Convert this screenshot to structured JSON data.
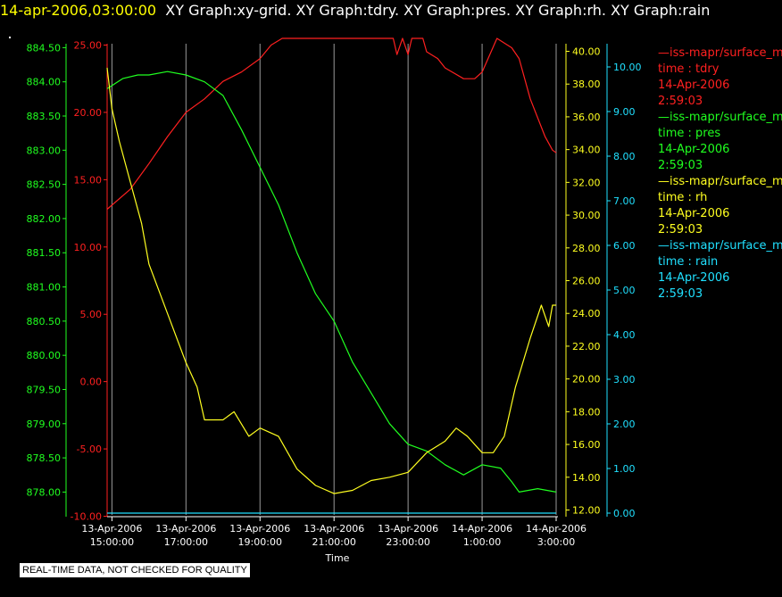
{
  "header": {
    "timestamp": "14-apr-2006,03:00:00",
    "title_rest": "XY Graph:xy-grid.  XY Graph:tdry.  XY Graph:pres.  XY Graph:rh.  XY Graph:rain"
  },
  "quality_note": "REAL-TIME DATA, NOT CHECKED FOR QUALITY",
  "legend": [
    {
      "name": "—iss-mapr/surface_m",
      "field": "time : tdry",
      "date": "14-Apr-2006",
      "time": "2:59:03",
      "color": "#ff2020"
    },
    {
      "name": "—iss-mapr/surface_m",
      "field": "time : pres",
      "date": "14-Apr-2006",
      "time": "2:59:03",
      "color": "#20ff20"
    },
    {
      "name": "—iss-mapr/surface_m",
      "field": "time : rh",
      "date": "14-Apr-2006",
      "time": "2:59:03",
      "color": "#ffff20"
    },
    {
      "name": "—iss-mapr/surface_m",
      "field": "time : rain",
      "date": "14-Apr-2006",
      "time": "2:59:03",
      "color": "#20e0ff"
    }
  ],
  "chart_data": {
    "type": "line",
    "xlabel": "Time",
    "x_range": [
      "13-Apr-2006 14:52",
      "14-Apr-2006 03:00"
    ],
    "x_ticks": [
      {
        "date": "13-Apr-2006",
        "time": "15:00:00",
        "hours": 0
      },
      {
        "date": "13-Apr-2006",
        "time": "17:00:00",
        "hours": 2
      },
      {
        "date": "13-Apr-2006",
        "time": "19:00:00",
        "hours": 4
      },
      {
        "date": "13-Apr-2006",
        "time": "21:00:00",
        "hours": 6
      },
      {
        "date": "13-Apr-2006",
        "time": "23:00:00",
        "hours": 8
      },
      {
        "date": "14-Apr-2006",
        "time": "1:00:00",
        "hours": 10
      },
      {
        "date": "14-Apr-2006",
        "time": "3:00:00",
        "hours": 12
      }
    ],
    "grid": "vertical",
    "axes": {
      "tdry": {
        "color": "#ff2020",
        "range": [
          -10,
          25
        ],
        "ticks": [
          "-10.00",
          "-5.00",
          "0.00",
          "5.00",
          "10.00",
          "15.00",
          "20.00",
          "25.00"
        ]
      },
      "pres": {
        "color": "#20ff20",
        "range": [
          877.8,
          884.5
        ],
        "ticks": [
          "878.00",
          "878.50",
          "879.00",
          "879.50",
          "880.00",
          "880.50",
          "881.00",
          "881.50",
          "882.00",
          "882.50",
          "883.00",
          "883.50",
          "884.00",
          "884.50"
        ]
      },
      "rh": {
        "color": "#ffff20",
        "range": [
          11.8,
          40.2
        ],
        "ticks": [
          "12.00",
          "14.00",
          "16.00",
          "18.00",
          "20.00",
          "22.00",
          "24.00",
          "26.00",
          "28.00",
          "30.00",
          "32.00",
          "34.00",
          "36.00",
          "38.00",
          "40.00"
        ]
      },
      "rain": {
        "color": "#20e0ff",
        "range": [
          -0.02,
          10.4
        ],
        "ticks": [
          "0.00",
          "1.00",
          "2.00",
          "3.00",
          "4.00",
          "5.00",
          "6.00",
          "7.00",
          "8.00",
          "9.00",
          "10.00"
        ]
      }
    },
    "series": [
      {
        "key": "tdry",
        "x": [
          -0.13,
          0.5,
          1.0,
          1.5,
          2.0,
          2.5,
          3.0,
          3.5,
          4.0,
          4.3,
          4.6,
          5.0,
          5.5,
          6.0,
          6.5,
          7.0,
          7.3,
          7.6,
          7.7,
          7.85,
          8.0,
          8.1,
          8.2,
          8.4,
          8.5,
          8.8,
          9.0,
          9.5,
          9.8,
          10.0,
          10.4,
          10.8,
          11.0,
          11.3,
          11.7,
          11.9,
          12.0
        ],
        "y": [
          12.8,
          14.3,
          16.2,
          18.2,
          20.0,
          21.0,
          22.3,
          23.0,
          24.0,
          25.0,
          25.5,
          25.5,
          25.5,
          25.5,
          25.5,
          25.5,
          25.5,
          25.5,
          24.3,
          25.5,
          24.3,
          25.5,
          25.5,
          25.5,
          24.5,
          24.0,
          23.3,
          22.5,
          22.5,
          23.0,
          25.5,
          24.8,
          24.0,
          21.0,
          18.2,
          17.2,
          17.0
        ]
      },
      {
        "key": "pres",
        "x": [
          -0.13,
          0.3,
          0.7,
          1.0,
          1.5,
          2.0,
          2.5,
          3.0,
          3.5,
          4.0,
          4.5,
          5.0,
          5.5,
          6.0,
          6.5,
          7.0,
          7.5,
          8.0,
          8.5,
          9.0,
          9.5,
          10.0,
          10.5,
          10.8,
          11.0,
          11.5,
          12.0
        ],
        "y": [
          883.9,
          884.05,
          884.1,
          884.1,
          884.15,
          884.1,
          884.0,
          883.8,
          883.3,
          882.75,
          882.2,
          881.5,
          880.9,
          880.5,
          879.9,
          879.45,
          879.0,
          878.7,
          878.6,
          878.4,
          878.25,
          878.4,
          878.35,
          878.15,
          878.0,
          878.05,
          878.0
        ]
      },
      {
        "key": "rh",
        "x": [
          -0.13,
          0.0,
          0.2,
          0.5,
          0.8,
          1.0,
          1.5,
          2.0,
          2.3,
          2.5,
          3.0,
          3.3,
          3.7,
          4.0,
          4.5,
          5.0,
          5.5,
          6.0,
          6.5,
          7.0,
          7.5,
          8.0,
          8.5,
          9.0,
          9.3,
          9.6,
          10.0,
          10.3,
          10.6,
          10.9,
          11.3,
          11.6,
          11.8,
          11.9,
          12.0
        ],
        "y": [
          39.0,
          36.5,
          34.5,
          32.0,
          29.5,
          27.0,
          24.0,
          21.0,
          19.5,
          17.5,
          17.5,
          18.0,
          16.5,
          17.0,
          16.5,
          14.5,
          13.5,
          13.0,
          13.2,
          13.8,
          14.0,
          14.3,
          15.5,
          16.2,
          17.0,
          16.5,
          15.5,
          15.5,
          16.5,
          19.5,
          22.5,
          24.5,
          23.2,
          24.5,
          24.5
        ]
      },
      {
        "key": "rain",
        "x": [
          -0.13,
          12.0
        ],
        "y": [
          0.0,
          0.0
        ]
      }
    ]
  }
}
